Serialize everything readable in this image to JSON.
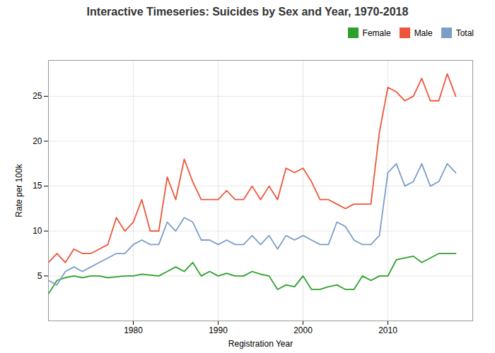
{
  "chart_data": {
    "type": "line",
    "title": "Interactive Timeseries: Suicides by Sex and Year, 1970-2018",
    "xlabel": "Registration Year",
    "ylabel": "Rate per 100k",
    "x": [
      1970,
      1971,
      1972,
      1973,
      1974,
      1975,
      1976,
      1977,
      1978,
      1979,
      1980,
      1981,
      1982,
      1983,
      1984,
      1985,
      1986,
      1987,
      1988,
      1989,
      1990,
      1991,
      1992,
      1993,
      1994,
      1995,
      1996,
      1997,
      1998,
      1999,
      2000,
      2001,
      2002,
      2003,
      2004,
      2005,
      2006,
      2007,
      2008,
      2009,
      2010,
      2011,
      2012,
      2013,
      2014,
      2015,
      2016,
      2017,
      2018
    ],
    "series": [
      {
        "name": "Female",
        "color": "#2ca02c",
        "values": [
          3.0,
          4.5,
          4.8,
          5.0,
          4.8,
          5.0,
          5.0,
          4.8,
          4.9,
          5.0,
          5.0,
          5.2,
          5.1,
          5.0,
          5.5,
          6.0,
          5.5,
          6.5,
          5.0,
          5.5,
          5.0,
          5.3,
          5.0,
          5.0,
          5.5,
          5.2,
          5.0,
          3.5,
          4.0,
          3.8,
          5.0,
          3.5,
          3.5,
          3.8,
          4.0,
          3.5,
          3.5,
          5.0,
          4.5,
          5.0,
          5.0,
          6.8,
          7.0,
          7.2,
          6.5,
          7.0,
          7.5,
          7.5,
          7.5
        ]
      },
      {
        "name": "Male",
        "color": "#EF553B",
        "values": [
          6.5,
          7.5,
          6.5,
          8.0,
          7.5,
          7.5,
          8.0,
          8.5,
          11.5,
          10.0,
          11.0,
          13.5,
          10.0,
          10.0,
          16.0,
          13.5,
          18.0,
          15.5,
          13.5,
          13.5,
          13.5,
          14.5,
          13.5,
          13.5,
          15.0,
          13.5,
          15.0,
          13.5,
          17.0,
          16.5,
          17.0,
          15.5,
          13.5,
          13.5,
          13.0,
          12.5,
          13.0,
          13.0,
          13.0,
          21.0,
          26.0,
          25.5,
          24.5,
          25.0,
          27.0,
          24.5,
          24.5,
          27.5,
          25.0
        ]
      },
      {
        "name": "Total",
        "color": "#7b9ec8",
        "values": [
          4.5,
          4.0,
          5.5,
          6.0,
          5.5,
          6.0,
          6.5,
          7.0,
          7.5,
          7.5,
          8.5,
          9.0,
          8.5,
          8.5,
          11.0,
          10.0,
          11.5,
          11.0,
          9.0,
          9.0,
          8.5,
          9.0,
          8.5,
          8.5,
          9.5,
          8.5,
          9.5,
          8.0,
          9.5,
          9.0,
          9.5,
          9.0,
          8.5,
          8.5,
          11.0,
          10.5,
          9.0,
          8.5,
          8.5,
          9.5,
          16.5,
          17.5,
          15.0,
          15.5,
          17.5,
          15.0,
          15.5,
          17.5,
          16.5
        ]
      }
    ],
    "xlim": [
      1970,
      2020
    ],
    "ylim": [
      0,
      29
    ],
    "xticks": [
      1980,
      1990,
      2000,
      2010
    ],
    "yticks": [
      5,
      10,
      15,
      20,
      25
    ],
    "grid": true,
    "legend": "upper right"
  }
}
